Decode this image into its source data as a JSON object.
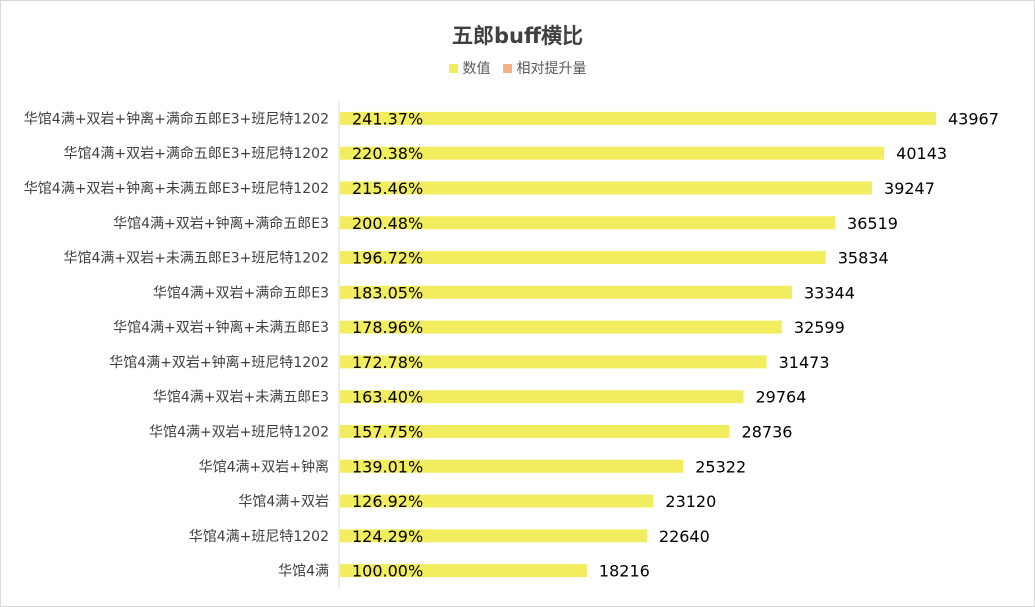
{
  "chart_data": {
    "type": "bar",
    "orientation": "horizontal",
    "title": "五郎buff横比",
    "legend_position": "top",
    "grid": false,
    "categories": [
      "华馆4满+双岩+钟离+满命五郎E3+班尼特1202",
      "华馆4满+双岩+满命五郎E3+班尼特1202",
      "华馆4满+双岩+钟离+未满五郎E3+班尼特1202",
      "华馆4满+双岩+钟离+满命五郎E3",
      "华馆4满+双岩+未满五郎E3+班尼特1202",
      "华馆4满+双岩+满命五郎E3",
      "华馆4满+双岩+钟离+未满五郎E3",
      "华馆4满+双岩+钟离+班尼特1202",
      "华馆4满+双岩+未满五郎E3",
      "华馆4满+双岩+班尼特1202",
      "华馆4满+双岩+钟离",
      "华馆4满+双岩",
      "华馆4满+班尼特1202",
      "华馆4满"
    ],
    "series": [
      {
        "name": "数值",
        "color": "#f1ed5f",
        "values": [
          43967,
          40143,
          39247,
          36519,
          35834,
          33344,
          32599,
          31473,
          29764,
          28736,
          25322,
          23120,
          22640,
          18216
        ]
      },
      {
        "name": "相对提升量",
        "color": "#f4b183",
        "values": [
          "241.37%",
          "220.38%",
          "215.46%",
          "200.48%",
          "196.72%",
          "183.05%",
          "178.96%",
          "172.78%",
          "163.40%",
          "157.75%",
          "139.01%",
          "126.92%",
          "124.29%",
          "100.00%"
        ]
      }
    ],
    "xlim": [
      0,
      45000
    ]
  }
}
